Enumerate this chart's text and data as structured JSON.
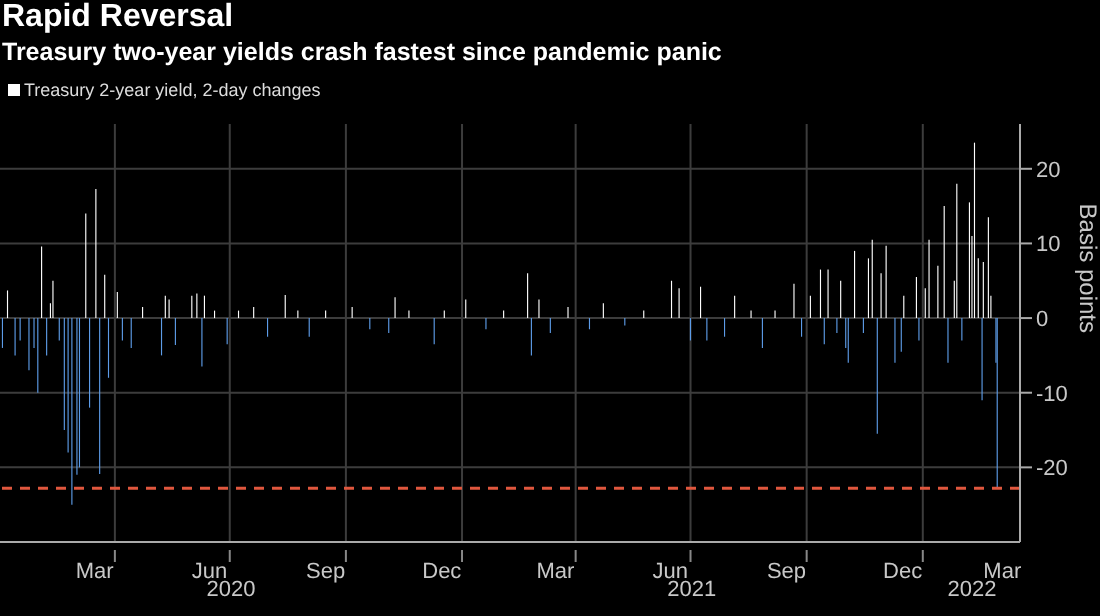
{
  "chart_data": {
    "type": "bar",
    "title": "Rapid Reversal",
    "subtitle": "Treasury two-year yields crash fastest since pandemic panic",
    "ylabel": "Basis points",
    "legend": "top left",
    "grid": true,
    "x": [
      "2020-01-03",
      "2020-01-07",
      "2020-01-13",
      "2020-01-17",
      "2020-01-24",
      "2020-01-28",
      "2020-01-31",
      "2020-02-03",
      "2020-02-07",
      "2020-02-10",
      "2020-02-12",
      "2020-02-17",
      "2020-02-21",
      "2020-02-24",
      "2020-02-27",
      "2020-03-02",
      "2020-03-04",
      "2020-03-09",
      "2020-03-12",
      "2020-03-17",
      "2020-03-20",
      "2020-03-24",
      "2020-03-27",
      "2020-04-03",
      "2020-04-07",
      "2020-04-14",
      "2020-04-23",
      "2020-05-08",
      "2020-05-11",
      "2020-05-14",
      "2020-05-19",
      "2020-06-01",
      "2020-06-05",
      "2020-06-09",
      "2020-06-11",
      "2020-06-19",
      "2020-06-29",
      "2020-07-08",
      "2020-07-20",
      "2020-07-31",
      "2020-08-14",
      "2020-08-24",
      "2020-09-02",
      "2020-09-15",
      "2020-10-06",
      "2020-10-20",
      "2020-11-04",
      "2020-11-09",
      "2020-11-20",
      "2020-12-10",
      "2020-12-18",
      "2021-01-04",
      "2021-01-20",
      "2021-02-03",
      "2021-02-22",
      "2021-02-25",
      "2021-03-03",
      "2021-03-12",
      "2021-03-26",
      "2021-04-12",
      "2021-04-23",
      "2021-05-10",
      "2021-05-25",
      "2021-06-16",
      "2021-06-22",
      "2021-07-01",
      "2021-07-09",
      "2021-07-14",
      "2021-07-28",
      "2021-08-05",
      "2021-08-18",
      "2021-08-27",
      "2021-09-06",
      "2021-09-21",
      "2021-09-27",
      "2021-10-04",
      "2021-10-12",
      "2021-10-15",
      "2021-10-18",
      "2021-10-25",
      "2021-10-28",
      "2021-11-01",
      "2021-11-03",
      "2021-11-08",
      "2021-11-15",
      "2021-11-19",
      "2021-11-22",
      "2021-11-26",
      "2021-11-29",
      "2021-12-03",
      "2021-12-10",
      "2021-12-15",
      "2021-12-17",
      "2021-12-27",
      "2021-12-29",
      "2022-01-03",
      "2022-01-06",
      "2022-01-13",
      "2022-01-18",
      "2022-01-21",
      "2022-01-26",
      "2022-01-28",
      "2022-02-01",
      "2022-02-07",
      "2022-02-09",
      "2022-02-11",
      "2022-02-14",
      "2022-02-17",
      "2022-02-18",
      "2022-02-22",
      "2022-02-24",
      "2022-02-28",
      "2022-03-01"
    ],
    "series": [
      {
        "name": "Treasury 2-year yield, 2-day changes",
        "color": "#ffffff",
        "values": [
          -4,
          3.7,
          -5,
          -3,
          -7,
          -4,
          -10,
          9.6,
          -5,
          2,
          5,
          -3,
          -15,
          -18,
          -25,
          -21,
          -20,
          14,
          -12,
          17.3,
          -20.9,
          5.8,
          -8,
          3.5,
          -3,
          -4,
          1.5,
          -5,
          3,
          2.5,
          -3.6,
          3,
          3.3,
          -6.5,
          3,
          1,
          -3.5,
          1,
          1.5,
          -2.5,
          3.1,
          1,
          -2.5,
          1,
          1.5,
          -1.5,
          -2,
          2.8,
          1,
          -3.5,
          1,
          2.5,
          -1.5,
          1,
          6,
          -5,
          2.5,
          -2,
          1.5,
          -1.5,
          2,
          -1,
          1,
          5,
          4,
          -3,
          4.2,
          -3,
          -2.5,
          3,
          1,
          -4,
          1,
          4.6,
          -2.5,
          3,
          6.5,
          -3.5,
          6.5,
          -2,
          5,
          -4,
          -6,
          9,
          -2,
          8,
          10.5,
          -15.5,
          6,
          9.7,
          -6,
          -4.5,
          3,
          5.5,
          -3,
          4,
          10.5,
          7,
          15,
          -6,
          5,
          18,
          -3,
          15.5,
          11,
          23.5,
          8,
          -11,
          7.5,
          13.5,
          3,
          -6,
          -22.8
        ],
        "colors": [
          "#5d9ce8",
          "#ffffff",
          "#5d9ce8",
          "#5d9ce8",
          "#5d9ce8",
          "#5d9ce8",
          "#5d9ce8",
          "#ffffff",
          "#5d9ce8",
          "#ffffff",
          "#ffffff",
          "#5d9ce8",
          "#5d9ce8",
          "#5d9ce8",
          "#5d9ce8",
          "#5d9ce8",
          "#5d9ce8",
          "#ffffff",
          "#5d9ce8",
          "#ffffff",
          "#5d9ce8",
          "#ffffff",
          "#5d9ce8",
          "#ffffff",
          "#5d9ce8",
          "#5d9ce8",
          "#ffffff",
          "#5d9ce8",
          "#ffffff",
          "#ffffff",
          "#5d9ce8",
          "#ffffff",
          "#ffffff",
          "#5d9ce8",
          "#ffffff",
          "#ffffff",
          "#5d9ce8",
          "#ffffff",
          "#ffffff",
          "#5d9ce8",
          "#ffffff",
          "#ffffff",
          "#5d9ce8",
          "#ffffff",
          "#ffffff",
          "#5d9ce8",
          "#5d9ce8",
          "#ffffff",
          "#ffffff",
          "#5d9ce8",
          "#ffffff",
          "#ffffff",
          "#5d9ce8",
          "#ffffff",
          "#ffffff",
          "#5d9ce8",
          "#ffffff",
          "#5d9ce8",
          "#ffffff",
          "#5d9ce8",
          "#ffffff",
          "#5d9ce8",
          "#ffffff",
          "#ffffff",
          "#ffffff",
          "#5d9ce8",
          "#ffffff",
          "#5d9ce8",
          "#5d9ce8",
          "#ffffff",
          "#ffffff",
          "#5d9ce8",
          "#ffffff",
          "#ffffff",
          "#5d9ce8",
          "#ffffff",
          "#ffffff",
          "#5d9ce8",
          "#ffffff",
          "#5d9ce8",
          "#ffffff",
          "#5d9ce8",
          "#5d9ce8",
          "#ffffff",
          "#5d9ce8",
          "#ffffff",
          "#ffffff",
          "#5d9ce8",
          "#ffffff",
          "#ffffff",
          "#5d9ce8",
          "#5d9ce8",
          "#ffffff",
          "#ffffff",
          "#5d9ce8",
          "#ffffff",
          "#ffffff",
          "#ffffff",
          "#ffffff",
          "#5d9ce8",
          "#ffffff",
          "#ffffff",
          "#5d9ce8",
          "#ffffff",
          "#ffffff",
          "#ffffff",
          "#ffffff",
          "#5d9ce8",
          "#ffffff",
          "#ffffff",
          "#ffffff",
          "#5d9ce8",
          "#5d9ce8"
        ]
      }
    ],
    "xlim": [
      "2020-01-01",
      "2022-03-19"
    ],
    "xticks": [
      {
        "value": "2020-03-16",
        "label": "Mar"
      },
      {
        "value": "2020-04-01",
        "label": null
      },
      {
        "value": "2020-06-15",
        "label": "Jun"
      },
      {
        "value": "2020-07-01",
        "label": null
      },
      {
        "value": "2020-09-15",
        "label": "Sep"
      },
      {
        "value": "2020-10-01",
        "label": null
      },
      {
        "value": "2020-12-16",
        "label": "Dec"
      },
      {
        "value": "2021-01-01",
        "label": null
      },
      {
        "value": "2021-03-16",
        "label": "Mar"
      },
      {
        "value": "2021-04-01",
        "label": null
      },
      {
        "value": "2021-06-15",
        "label": "Jun"
      },
      {
        "value": "2021-07-01",
        "label": null
      },
      {
        "value": "2021-09-15",
        "label": "Sep"
      },
      {
        "value": "2021-10-01",
        "label": null
      },
      {
        "value": "2021-12-16",
        "label": "Dec"
      },
      {
        "value": "2022-01-01",
        "label": null
      },
      {
        "value": "2022-03-05",
        "label": "Mar"
      }
    ],
    "x2lim": [
      "2020-01-01",
      "2022-03-19"
    ],
    "x2ticks": [
      {
        "value": "2020-07-02",
        "label": "2020"
      },
      {
        "value": "2021-07-02",
        "label": "2021"
      },
      {
        "value": "2022-02-09",
        "label": "2022"
      }
    ],
    "ylim": [
      -30,
      26
    ],
    "yticks": [
      -20,
      -10,
      0,
      10,
      20
    ],
    "ref_lines": [
      {
        "axis": "y",
        "value": -22.8,
        "color": "#e0573e",
        "line_style": "dashed"
      }
    ]
  }
}
